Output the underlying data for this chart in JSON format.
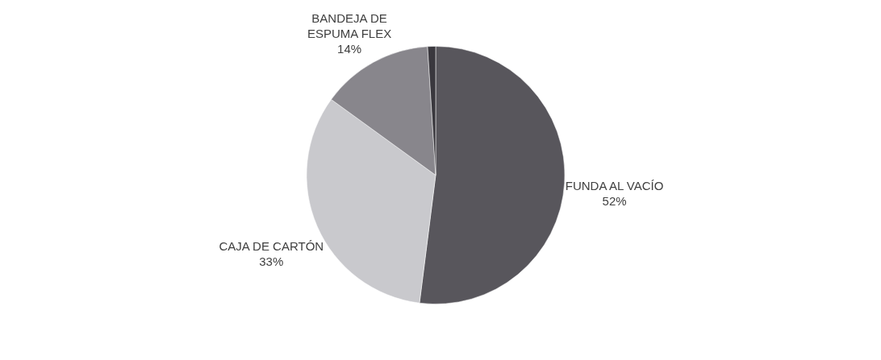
{
  "chart_data": {
    "type": "pie",
    "categories": [
      "FUNDA AL VACÍO",
      "CAJA DE CARTÓN",
      "BANDEJA DE ESPUMA FLEX",
      null
    ],
    "values": [
      52,
      33,
      14,
      1
    ],
    "colors": [
      "#58565c",
      "#c9c9cd",
      "#88868c",
      "#3a383e"
    ],
    "value_labels": [
      "52%",
      "33%",
      "14%",
      null
    ],
    "legend": false
  }
}
